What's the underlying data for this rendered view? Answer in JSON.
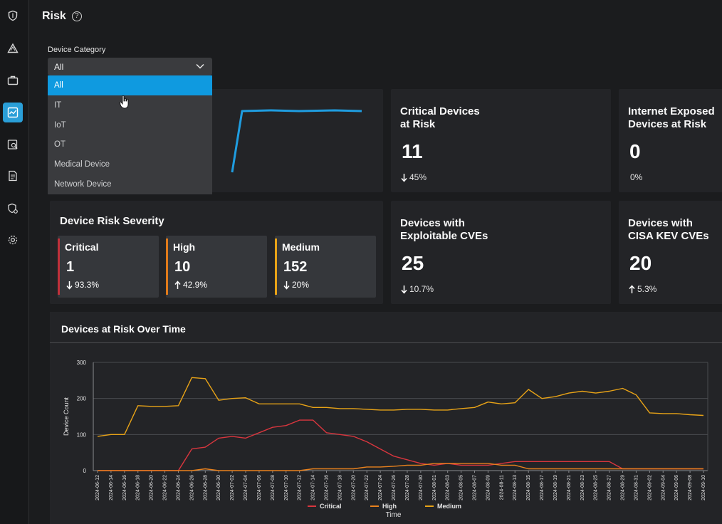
{
  "page": {
    "title": "Risk"
  },
  "sidebar": {
    "items": [
      "shield-icon",
      "alert-triangle-icon",
      "briefcase-icon",
      "chart-icon",
      "search-doc-icon",
      "report-icon",
      "shield-gear-icon",
      "settings-icon"
    ]
  },
  "filter": {
    "label": "Device Category",
    "selected": "All",
    "options": [
      "All",
      "IT",
      "IoT",
      "OT",
      "Medical Device",
      "Network Device"
    ]
  },
  "kpis": {
    "critical_devices": {
      "title_line1": "Critical Devices",
      "title_line2": "at Risk",
      "value": "11",
      "delta": "45%",
      "direction": "down"
    },
    "internet_exposed": {
      "title_line1": "Internet Exposed",
      "title_line2": "Devices at Risk",
      "value": "0",
      "delta": "0%"
    },
    "exploitable_cves": {
      "title_line1": "Devices with",
      "title_line2": "Exploitable CVEs",
      "value": "25",
      "delta": "10.7%",
      "direction": "down"
    },
    "cisa_kev": {
      "title_line1": "Devices with",
      "title_line2": "CISA KEV CVEs",
      "value": "20",
      "delta": "5.3%",
      "direction": "up"
    }
  },
  "severity": {
    "title": "Device Risk Severity",
    "items": [
      {
        "label": "Critical",
        "value": "1",
        "delta": "93.3%",
        "direction": "down",
        "color": "#c0313b"
      },
      {
        "label": "High",
        "value": "10",
        "delta": "42.9%",
        "direction": "up",
        "color": "#e07a1a"
      },
      {
        "label": "Medium",
        "value": "152",
        "delta": "20%",
        "direction": "down",
        "color": "#e8a317"
      }
    ]
  },
  "colors": {
    "accent": "#2a9fd8",
    "critical": "#d9363e",
    "high": "#e9821e",
    "medium": "#e8a317",
    "sparkline": "#1f9de0"
  },
  "chart_data": {
    "type": "line",
    "title": "Devices at Risk Over Time",
    "xlabel": "Time",
    "ylabel": "Device Count",
    "ylim": [
      0,
      300
    ],
    "yticks": [
      0,
      100,
      200,
      300
    ],
    "legend_position": "bottom",
    "x": [
      "2024-06-12",
      "2024-06-14",
      "2024-06-16",
      "2024-06-18",
      "2024-06-20",
      "2024-06-22",
      "2024-06-24",
      "2024-06-26",
      "2024-06-28",
      "2024-06-30",
      "2024-07-02",
      "2024-07-04",
      "2024-07-06",
      "2024-07-08",
      "2024-07-10",
      "2024-07-12",
      "2024-07-14",
      "2024-07-16",
      "2024-07-18",
      "2024-07-20",
      "2024-07-22",
      "2024-07-24",
      "2024-07-26",
      "2024-07-28",
      "2024-07-30",
      "2024-08-01",
      "2024-08-03",
      "2024-08-05",
      "2024-08-07",
      "2024-08-09",
      "2024-08-11",
      "2024-08-13",
      "2024-08-15",
      "2024-08-17",
      "2024-08-19",
      "2024-08-21",
      "2024-08-23",
      "2024-08-25",
      "2024-08-27",
      "2024-08-29",
      "2024-08-31",
      "2024-09-02",
      "2024-09-04",
      "2024-09-06",
      "2024-09-08",
      "2024-09-10"
    ],
    "series": [
      {
        "name": "Critical",
        "color": "#d9363e",
        "values": [
          0,
          0,
          0,
          0,
          0,
          0,
          0,
          60,
          65,
          90,
          95,
          90,
          105,
          120,
          125,
          140,
          140,
          105,
          100,
          95,
          80,
          60,
          40,
          30,
          20,
          15,
          20,
          15,
          15,
          15,
          20,
          25,
          25,
          25,
          25,
          25,
          25,
          25,
          25,
          5,
          5,
          5,
          5,
          5,
          5,
          5
        ]
      },
      {
        "name": "High",
        "color": "#e9821e",
        "values": [
          0,
          0,
          0,
          0,
          0,
          0,
          0,
          0,
          5,
          0,
          0,
          0,
          0,
          0,
          0,
          0,
          5,
          5,
          5,
          5,
          10,
          10,
          12,
          15,
          15,
          20,
          20,
          20,
          20,
          20,
          15,
          15,
          5,
          5,
          5,
          5,
          5,
          5,
          5,
          5,
          5,
          5,
          5,
          5,
          5,
          5
        ]
      },
      {
        "name": "Medium",
        "color": "#e8a317",
        "values": [
          95,
          100,
          100,
          180,
          178,
          178,
          180,
          258,
          255,
          195,
          200,
          202,
          185,
          185,
          185,
          185,
          175,
          175,
          172,
          172,
          170,
          168,
          168,
          170,
          170,
          168,
          168,
          172,
          175,
          190,
          185,
          188,
          225,
          200,
          205,
          215,
          220,
          215,
          220,
          228,
          210,
          160,
          158,
          158,
          155,
          153
        ]
      }
    ]
  }
}
